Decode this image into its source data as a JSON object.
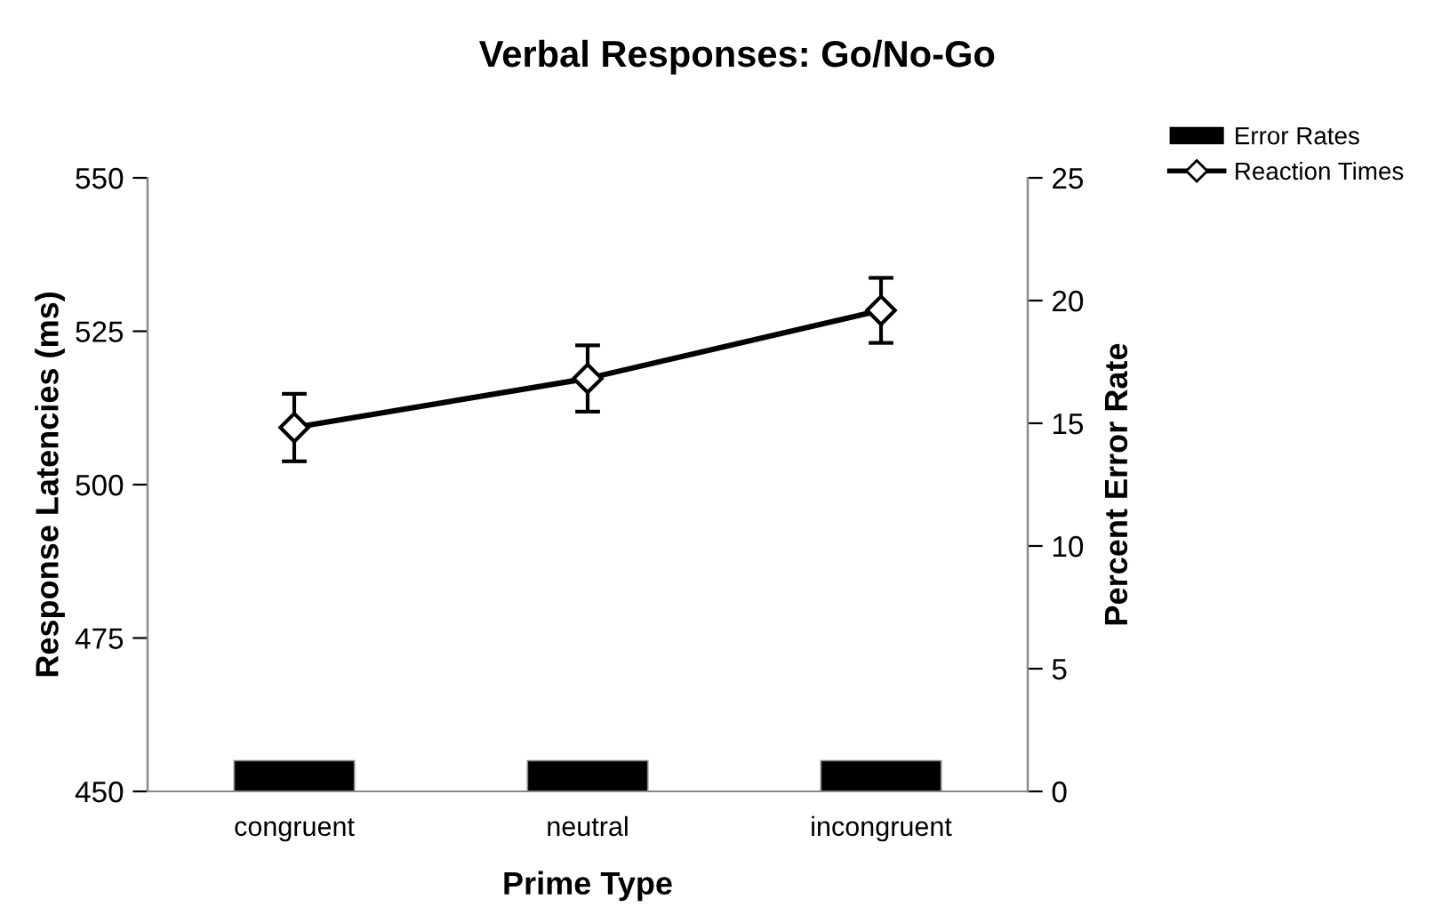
{
  "chart_data": {
    "type": "line",
    "title": "Verbal Responses: Go/No-Go",
    "xlabel": "Prime Type",
    "ylabel": "Response Latencies (ms)",
    "y2label": "Percent Error Rate",
    "categories": [
      "congruent",
      "neutral",
      "incongruent"
    ],
    "series": [
      {
        "name": "Error Rates",
        "type": "bar",
        "axis": "y2",
        "color": "#000000",
        "values": [
          1.25,
          1.25,
          1.25
        ]
      },
      {
        "name": "Reaction Times",
        "color": "#000000",
        "marker": "diamond",
        "values": [
          509.3,
          517.3,
          528.4
        ],
        "errors": [
          5.5,
          5.4,
          5.3
        ]
      }
    ],
    "ylim": [
      450,
      550
    ],
    "yticks": [
      450,
      475,
      500,
      525,
      550
    ],
    "y2lim": [
      0,
      25
    ],
    "y2ticks": [
      0,
      5,
      10,
      15,
      20,
      25
    ],
    "grid": false,
    "legend": "top right"
  }
}
